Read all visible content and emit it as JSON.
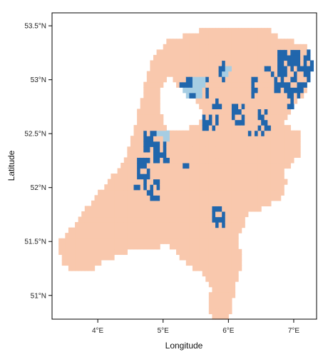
{
  "axes": {
    "x": {
      "title": "Longitude",
      "ticks": [
        4,
        5,
        6,
        7
      ],
      "labels": [
        "4°E",
        "5°E",
        "6°E",
        "7°E"
      ],
      "range": [
        3.3,
        7.35
      ]
    },
    "y": {
      "title": "Latitude",
      "ticks": [
        51,
        51.5,
        52,
        52.5,
        53,
        53.5
      ],
      "labels": [
        "51°N",
        "51.5°N",
        "52°N",
        "52.5°N",
        "53°N",
        "53.5°N"
      ],
      "range": [
        50.78,
        53.62
      ]
    }
  },
  "colors": {
    "land": "#f9c8ad",
    "dark_blue": "#2166ac",
    "light_blue": "#a6cde3",
    "background": "#ffffff",
    "frame": "#000000"
  },
  "chart_data": {
    "type": "heatmap",
    "categories": [
      "land",
      "dark_blue",
      "light_blue"
    ],
    "land_outline_lonlat": [
      [
        3.45,
        51.29
      ],
      [
        3.6,
        51.22
      ],
      [
        3.85,
        51.22
      ],
      [
        4.1,
        51.32
      ],
      [
        4.38,
        51.38
      ],
      [
        4.6,
        51.44
      ],
      [
        4.85,
        51.42
      ],
      [
        5.05,
        51.48
      ],
      [
        5.35,
        51.3
      ],
      [
        5.6,
        51.2
      ],
      [
        5.75,
        51.08
      ],
      [
        5.68,
        50.9
      ],
      [
        5.75,
        50.77
      ],
      [
        6.0,
        50.77
      ],
      [
        6.05,
        50.88
      ],
      [
        6.1,
        51.1
      ],
      [
        6.2,
        51.3
      ],
      [
        6.15,
        51.55
      ],
      [
        6.3,
        51.75
      ],
      [
        6.8,
        51.9
      ],
      [
        6.9,
        52.05
      ],
      [
        6.85,
        52.15
      ],
      [
        7.1,
        52.3
      ],
      [
        7.1,
        52.5
      ],
      [
        6.85,
        52.6
      ],
      [
        6.95,
        52.72
      ],
      [
        7.2,
        52.9
      ],
      [
        7.3,
        53.15
      ],
      [
        7.2,
        53.3
      ],
      [
        7.05,
        53.35
      ],
      [
        6.8,
        53.38
      ],
      [
        6.6,
        53.48
      ],
      [
        6.3,
        53.48
      ],
      [
        6.0,
        53.5
      ],
      [
        5.7,
        53.48
      ],
      [
        5.4,
        53.42
      ],
      [
        5.1,
        53.38
      ],
      [
        4.85,
        53.22
      ],
      [
        4.75,
        53.05
      ],
      [
        4.7,
        52.92
      ],
      [
        4.6,
        52.65
      ],
      [
        4.45,
        52.3
      ],
      [
        4.15,
        52.05
      ],
      [
        3.9,
        51.87
      ],
      [
        3.75,
        51.75
      ],
      [
        3.6,
        51.62
      ],
      [
        3.4,
        51.5
      ]
    ],
    "water_lonlat": [
      [
        5.1,
        53.08
      ],
      [
        5.25,
        52.92
      ],
      [
        5.4,
        52.83
      ],
      [
        5.55,
        52.78
      ],
      [
        5.62,
        52.7
      ],
      [
        5.55,
        52.6
      ],
      [
        5.4,
        52.55
      ],
      [
        5.2,
        52.55
      ],
      [
        5.05,
        52.55
      ],
      [
        4.95,
        52.7
      ],
      [
        4.95,
        52.9
      ]
    ],
    "dark_blue_clusters_lonlat": [
      [
        6.75,
        52.86,
        7.32,
        53.27
      ],
      [
        6.9,
        52.68,
        7.1,
        52.86
      ],
      [
        6.45,
        52.52,
        6.6,
        52.72
      ],
      [
        6.32,
        52.5,
        6.55,
        52.52
      ],
      [
        6.05,
        52.58,
        6.25,
        52.78
      ],
      [
        5.6,
        52.55,
        5.85,
        52.7
      ],
      [
        5.75,
        52.72,
        5.9,
        52.85
      ],
      [
        5.2,
        52.85,
        5.7,
        53.05
      ],
      [
        5.85,
        53.0,
        5.95,
        53.2
      ],
      [
        6.3,
        52.85,
        6.45,
        53.02
      ],
      [
        6.7,
        52.9,
        6.8,
        53.05
      ],
      [
        6.55,
        53.05,
        6.7,
        53.15
      ],
      [
        4.7,
        52.35,
        5.0,
        52.55
      ],
      [
        4.85,
        52.25,
        5.1,
        52.35
      ],
      [
        4.6,
        52.1,
        4.8,
        52.3
      ],
      [
        4.7,
        51.88,
        4.95,
        52.1
      ],
      [
        5.3,
        52.2,
        5.4,
        52.25
      ],
      [
        4.95,
        52.35,
        5.05,
        52.45
      ],
      [
        5.75,
        51.65,
        5.95,
        51.85
      ],
      [
        6.6,
        52.55,
        6.7,
        52.6
      ],
      [
        4.55,
        52.0,
        4.65,
        52.05
      ],
      [
        5.6,
        52.1,
        5.65,
        52.15
      ]
    ],
    "light_blue_cells_lonlat": [
      [
        5.3,
        52.85
      ],
      [
        5.35,
        52.88
      ],
      [
        5.4,
        52.9
      ],
      [
        5.45,
        52.92
      ],
      [
        5.5,
        52.95
      ],
      [
        5.55,
        52.88
      ],
      [
        5.25,
        52.82
      ],
      [
        5.6,
        52.98
      ],
      [
        5.45,
        52.8
      ],
      [
        5.3,
        52.92
      ],
      [
        5.0,
        52.5
      ],
      [
        5.05,
        52.48
      ],
      [
        4.95,
        52.52
      ],
      [
        5.95,
        53.07
      ],
      [
        6.0,
        53.1
      ],
      [
        5.5,
        52.98
      ],
      [
        5.2,
        52.88
      ]
    ]
  }
}
